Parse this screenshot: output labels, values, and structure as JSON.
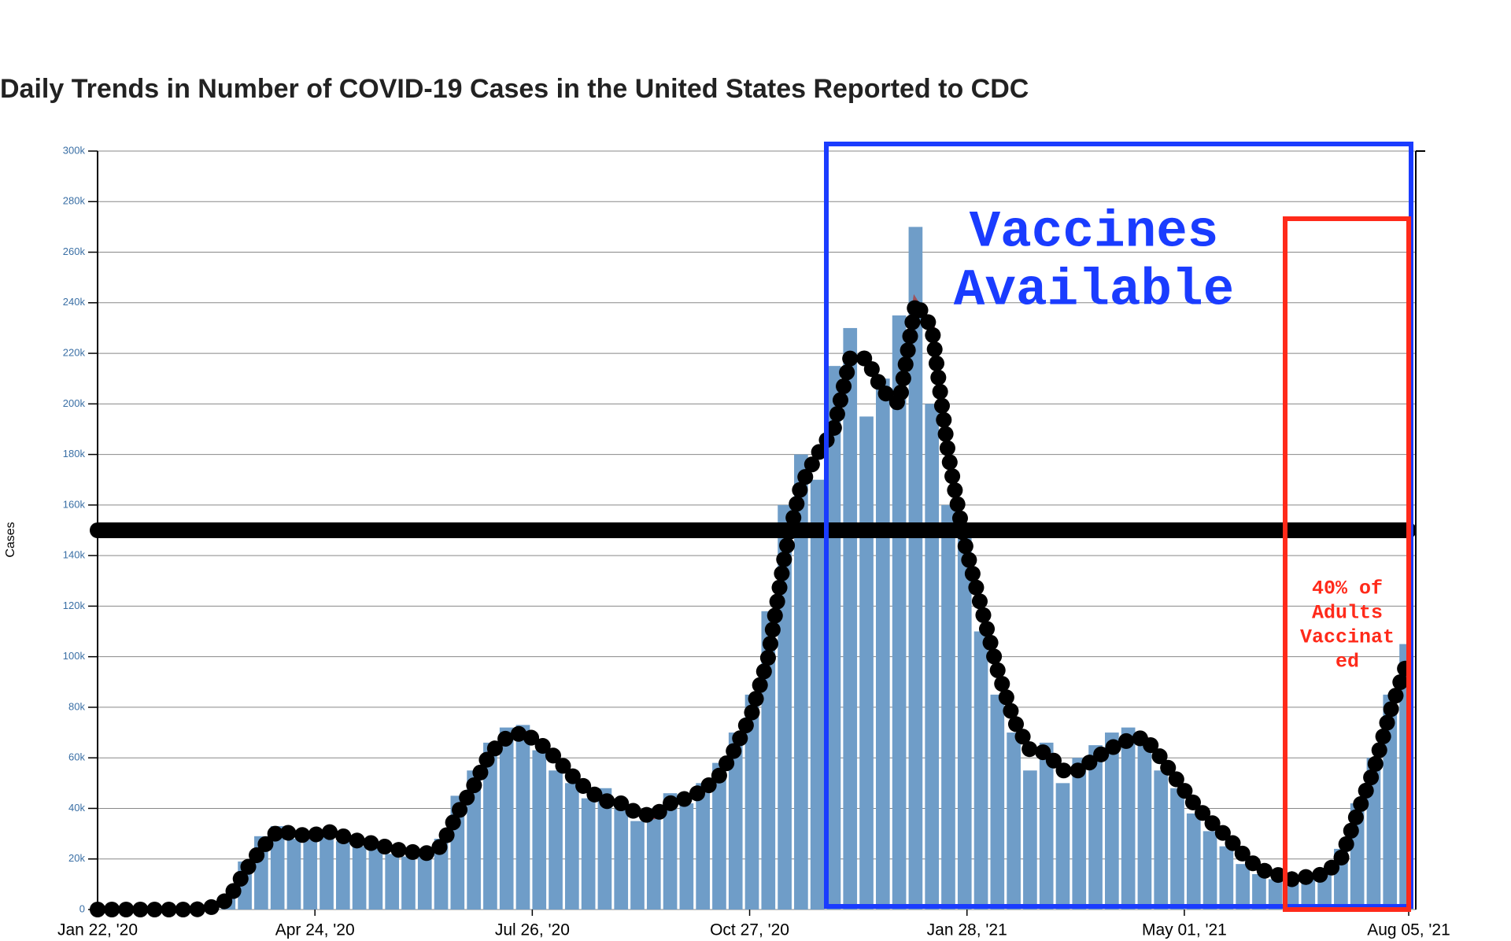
{
  "chart_data": {
    "type": "bar",
    "title": "Daily Trends in Number of COVID-19 Cases in the United States Reported to CDC",
    "y_label": "Cases",
    "x": [
      0,
      7,
      14,
      21,
      28,
      35,
      42,
      49,
      56,
      63,
      70,
      77,
      84,
      91,
      98,
      105,
      112,
      119,
      126,
      133,
      140,
      147,
      154,
      161,
      168,
      175,
      182,
      189,
      196,
      203,
      210,
      217,
      224,
      231,
      238,
      245,
      252,
      259,
      266,
      273,
      280,
      287,
      294,
      301,
      308,
      315,
      322,
      329,
      336,
      343,
      350,
      357,
      364,
      371,
      378,
      385,
      392,
      399,
      406,
      413,
      420,
      427,
      434,
      441,
      448,
      455,
      462,
      469,
      476,
      483,
      490,
      497,
      504,
      511,
      518,
      525,
      532,
      539,
      546,
      553,
      560
    ],
    "series": [
      {
        "type": "bar",
        "color": "#6f9dc8",
        "values": [
          0,
          0,
          0,
          0,
          0,
          0,
          0,
          1000,
          6000,
          19000,
          29000,
          33000,
          28000,
          30000,
          29000,
          27000,
          25000,
          27000,
          22000,
          21000,
          24000,
          28000,
          45000,
          55000,
          66000,
          72000,
          73000,
          63000,
          55000,
          50000,
          44000,
          48000,
          40000,
          35000,
          40000,
          46000,
          42000,
          50000,
          58000,
          70000,
          85000,
          118000,
          160000,
          180000,
          170000,
          215000,
          230000,
          195000,
          210000,
          235000,
          270000,
          200000,
          160000,
          150000,
          110000,
          85000,
          70000,
          55000,
          66000,
          50000,
          60000,
          65000,
          70000,
          72000,
          66000,
          55000,
          48000,
          38000,
          31000,
          25000,
          18000,
          14000,
          12000,
          11000,
          13000,
          16000,
          24000,
          42000,
          60000,
          85000,
          105000
        ]
      },
      {
        "type": "line",
        "color": "#000000",
        "values": [
          0,
          0,
          0,
          0,
          0,
          0,
          0,
          1000,
          4000,
          15000,
          24000,
          31000,
          30000,
          29000,
          31000,
          29000,
          27000,
          26000,
          24000,
          23000,
          22000,
          25000,
          38000,
          49000,
          62000,
          68000,
          70000,
          66000,
          60000,
          53000,
          47000,
          43000,
          42000,
          38000,
          37000,
          42000,
          44000,
          47000,
          53000,
          64000,
          78000,
          100000,
          140000,
          168000,
          180000,
          190000,
          218000,
          218000,
          205000,
          200000,
          240000,
          230000,
          180000,
          145000,
          120000,
          95000,
          75000,
          63000,
          62000,
          55000,
          55000,
          60000,
          64000,
          67000,
          68000,
          60000,
          51000,
          42000,
          35000,
          29000,
          22000,
          16000,
          14000,
          12000,
          13000,
          14000,
          20000,
          38000,
          55000,
          78000,
          97000
        ]
      }
    ],
    "reference_line": 150000,
    "xlim": [
      0,
      561
    ],
    "xticks": [
      {
        "value": 0,
        "label": "Jan 22, '20"
      },
      {
        "value": 93,
        "label": "Apr 24, '20"
      },
      {
        "value": 186,
        "label": "Jul 26, '20"
      },
      {
        "value": 279,
        "label": "Oct 27, '20"
      },
      {
        "value": 372,
        "label": "Jan 28, '21"
      },
      {
        "value": 465,
        "label": "May 01, '21"
      },
      {
        "value": 561,
        "label": "Aug 05, '21"
      }
    ],
    "ylim": [
      0,
      300000
    ],
    "yticks": [
      0,
      {
        "value": 20000,
        "label": "20k"
      },
      {
        "value": 40000,
        "label": "40k"
      },
      {
        "value": 60000,
        "label": "60k"
      },
      {
        "value": 80000,
        "label": "80k"
      },
      {
        "value": 100000,
        "label": "100k"
      },
      {
        "value": 120000,
        "label": "120k"
      },
      {
        "value": 140000,
        "label": "140k"
      },
      {
        "value": 160000,
        "label": "160k"
      },
      {
        "value": 180000,
        "label": "180k"
      },
      {
        "value": 200000,
        "label": "200k"
      },
      {
        "value": 220000,
        "label": "220k"
      },
      {
        "value": 240000,
        "label": "240k"
      },
      {
        "value": 260000,
        "label": "260k"
      },
      {
        "value": 280000,
        "label": "280k"
      },
      {
        "value": 300000,
        "label": "300k"
      }
    ],
    "grid": true,
    "annotations": [
      {
        "lines": [
          "Vaccines",
          "Available"
        ],
        "color": "#1a3cff"
      },
      {
        "lines": [
          "40% of",
          "Adults",
          "Vaccinat",
          "ed"
        ],
        "color": "#ff2a1a"
      }
    ]
  }
}
